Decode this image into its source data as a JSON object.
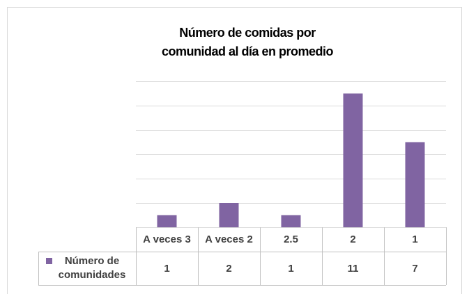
{
  "chart_data": {
    "type": "bar",
    "title": "Número de comidas por\ncomunidad al día en promedio",
    "categories": [
      "A veces 3",
      "A veces 2",
      "2.5",
      "2",
      "1"
    ],
    "series": [
      {
        "name": "Número de comunidades",
        "color": "#8064a2",
        "values": [
          1,
          2,
          1,
          11,
          7
        ]
      }
    ],
    "ylim": [
      0,
      12
    ],
    "yticks": [
      0,
      2,
      4,
      6,
      8,
      10,
      12
    ],
    "grid": true,
    "data_table": true
  }
}
